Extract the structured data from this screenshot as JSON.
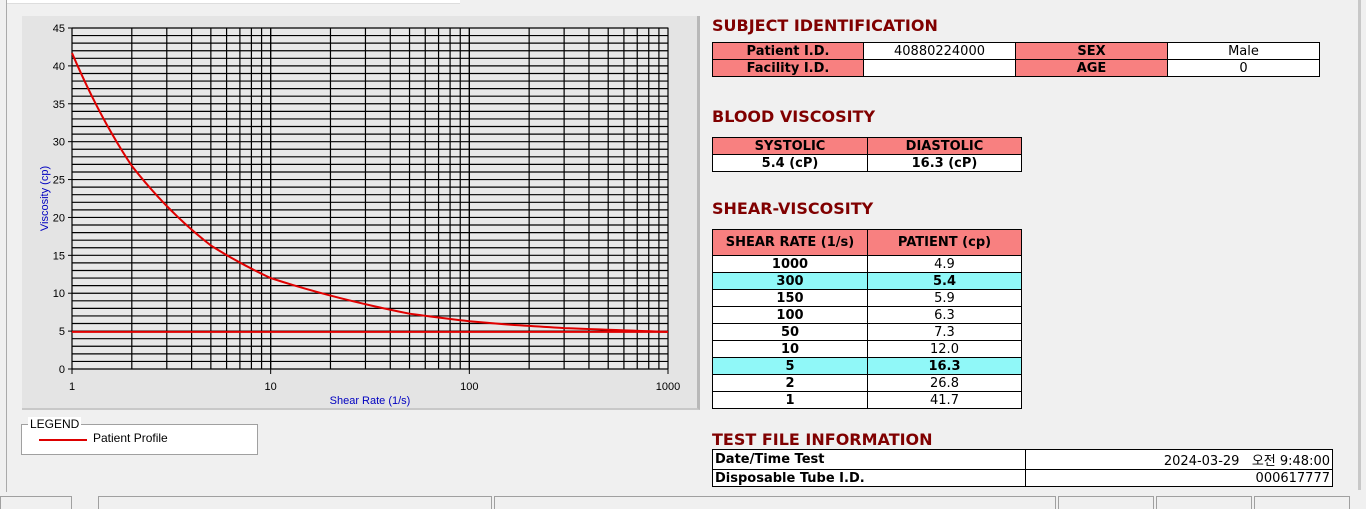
{
  "chart_data": {
    "type": "line",
    "xlabel": "Shear Rate (1/s)",
    "ylabel": "Viscosity (cp)",
    "xscale": "log",
    "xlim": [
      1,
      1000
    ],
    "ylim": [
      0,
      45
    ],
    "x_ticks": [
      "1",
      "10",
      "100",
      "1000"
    ],
    "y_ticks": [
      "0",
      "5",
      "10",
      "15",
      "20",
      "25",
      "30",
      "35",
      "40",
      "45"
    ],
    "grid": true,
    "series": [
      {
        "name": "Patient Profile",
        "color": "#e00000",
        "x": [
          1,
          2,
          5,
          10,
          50,
          100,
          150,
          300,
          1000
        ],
        "y": [
          41.7,
          26.8,
          16.3,
          12.0,
          7.3,
          6.3,
          5.9,
          5.4,
          4.9
        ]
      },
      {
        "color": "#e00000",
        "x": [
          1,
          1000
        ],
        "y": [
          4.9,
          4.9
        ]
      }
    ],
    "legend_title": "LEGEND",
    "legend": "bottom-left"
  },
  "subject": {
    "title": "SUBJECT IDENTIFICATION",
    "patient_id_label": "Patient I.D.",
    "patient_id": "40880224000",
    "sex_label": "SEX",
    "sex": "Male",
    "facility_label": "Facility I.D.",
    "facility": "",
    "age_label": "AGE",
    "age": "0"
  },
  "blood": {
    "title": "BLOOD VISCOSITY",
    "systolic_label": "SYSTOLIC",
    "diastolic_label": "DIASTOLIC",
    "systolic": "5.4 (cP)",
    "diastolic": "16.3 (cP)"
  },
  "shear": {
    "title": "SHEAR-VISCOSITY",
    "col1": "SHEAR RATE (1/s)",
    "col2": "PATIENT (cp)",
    "rows": [
      {
        "rate": "1000",
        "value": "4.9",
        "hl": false
      },
      {
        "rate": "300",
        "value": "5.4",
        "hl": true
      },
      {
        "rate": "150",
        "value": "5.9",
        "hl": false
      },
      {
        "rate": "100",
        "value": "6.3",
        "hl": false
      },
      {
        "rate": "50",
        "value": "7.3",
        "hl": false
      },
      {
        "rate": "10",
        "value": "12.0",
        "hl": false
      },
      {
        "rate": "5",
        "value": "16.3",
        "hl": true
      },
      {
        "rate": "2",
        "value": "26.8",
        "hl": false
      },
      {
        "rate": "1",
        "value": "41.7",
        "hl": false
      }
    ]
  },
  "testfile": {
    "title": "TEST FILE INFORMATION",
    "date_label": "Date/Time Test",
    "date": "2024-03-29   오전 9:48:00",
    "tube_label": "Disposable Tube I.D.",
    "tube": "000617777"
  },
  "colors": {
    "header_pink": "#f88080",
    "highlight_cyan": "#90f8f8",
    "title_red": "#800000",
    "curve": "#e00000"
  }
}
